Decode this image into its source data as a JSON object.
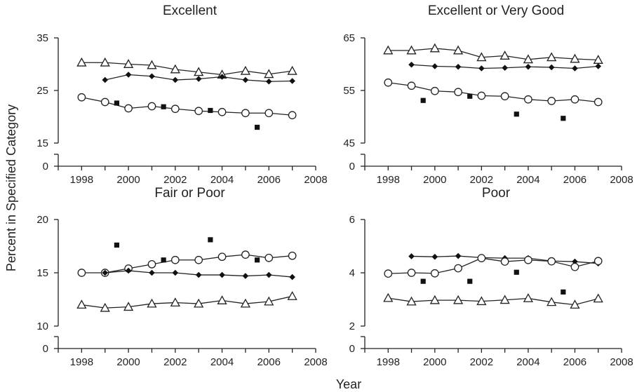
{
  "figure": {
    "ylabel": "Percent in Specified Category",
    "xlabel": "Year"
  },
  "chart_data": [
    {
      "type": "line",
      "title": "Excellent",
      "xlim": [
        1997,
        2008
      ],
      "xticks": [
        1998,
        2000,
        2002,
        2004,
        2006,
        2008
      ],
      "ylim": [
        15,
        35
      ],
      "yticks": [
        15,
        25,
        35
      ],
      "axis_break": true,
      "zero_label": "0",
      "series": [
        {
          "marker": "triangle-open",
          "line": true,
          "x": [
            1998,
            1999,
            2000,
            2001,
            2002,
            2003,
            2004,
            2005,
            2006,
            2007
          ],
          "y": [
            30.3,
            30.3,
            30.0,
            29.8,
            29.0,
            28.5,
            28.0,
            28.7,
            28.1,
            28.7
          ]
        },
        {
          "marker": "diamond-filled",
          "line": true,
          "x": [
            1999,
            2000,
            2001,
            2002,
            2003,
            2004,
            2005,
            2006,
            2007
          ],
          "y": [
            27.0,
            28.0,
            27.7,
            27.0,
            27.2,
            27.6,
            27.0,
            26.7,
            26.8
          ]
        },
        {
          "marker": "circle-open",
          "line": true,
          "x": [
            1998,
            1999,
            2000,
            2001,
            2002,
            2003,
            2004,
            2005,
            2006,
            2007
          ],
          "y": [
            23.7,
            22.8,
            21.6,
            22.0,
            21.5,
            21.1,
            20.9,
            20.7,
            20.7,
            20.3
          ]
        },
        {
          "marker": "square-filled",
          "line": false,
          "x": [
            1999.5,
            2001.5,
            2003.5,
            2005.5
          ],
          "y": [
            22.6,
            21.9,
            21.2,
            18.0
          ]
        }
      ]
    },
    {
      "type": "line",
      "title": "Excellent or Very Good",
      "xlim": [
        1997,
        2008
      ],
      "xticks": [
        1998,
        2000,
        2002,
        2004,
        2006,
        2008
      ],
      "ylim": [
        45,
        65
      ],
      "yticks": [
        45,
        55,
        65
      ],
      "axis_break": true,
      "zero_label": "0",
      "series": [
        {
          "marker": "triangle-open",
          "line": true,
          "x": [
            1998,
            1999,
            2000,
            2001,
            2002,
            2003,
            2004,
            2005,
            2006,
            2007
          ],
          "y": [
            62.6,
            62.6,
            63.0,
            62.6,
            61.3,
            61.6,
            60.9,
            61.3,
            61.0,
            60.8
          ]
        },
        {
          "marker": "diamond-filled",
          "line": true,
          "x": [
            1999,
            2000,
            2001,
            2002,
            2003,
            2004,
            2005,
            2006,
            2007
          ],
          "y": [
            59.9,
            59.6,
            59.5,
            59.2,
            59.3,
            59.5,
            59.4,
            59.2,
            59.6
          ]
        },
        {
          "marker": "circle-open",
          "line": true,
          "x": [
            1998,
            1999,
            2000,
            2001,
            2002,
            2003,
            2004,
            2005,
            2006,
            2007
          ],
          "y": [
            56.5,
            55.9,
            54.9,
            54.7,
            54.0,
            53.9,
            53.3,
            53.0,
            53.3,
            52.8
          ]
        },
        {
          "marker": "square-filled",
          "line": false,
          "x": [
            1999.5,
            2001.5,
            2003.5,
            2005.5
          ],
          "y": [
            53.1,
            53.9,
            50.5,
            49.7
          ]
        }
      ]
    },
    {
      "type": "line",
      "title": "Fair or Poor",
      "xlim": [
        1997,
        2008
      ],
      "xticks": [
        1998,
        2000,
        2002,
        2004,
        2006,
        2008
      ],
      "ylim": [
        10,
        20
      ],
      "yticks": [
        10,
        15,
        20
      ],
      "axis_break": true,
      "zero_label": "0",
      "series": [
        {
          "marker": "circle-open",
          "line": true,
          "x": [
            1998,
            1999,
            2000,
            2001,
            2002,
            2003,
            2004,
            2005,
            2006,
            2007
          ],
          "y": [
            15.0,
            15.0,
            15.4,
            15.8,
            16.2,
            16.2,
            16.5,
            16.7,
            16.4,
            16.6
          ]
        },
        {
          "marker": "diamond-filled",
          "line": true,
          "x": [
            1999,
            2000,
            2001,
            2002,
            2003,
            2004,
            2005,
            2006,
            2007
          ],
          "y": [
            15.0,
            15.2,
            15.0,
            15.0,
            14.8,
            14.8,
            14.7,
            14.8,
            14.6
          ]
        },
        {
          "marker": "triangle-open",
          "line": true,
          "x": [
            1998,
            1999,
            2000,
            2001,
            2002,
            2003,
            2004,
            2005,
            2006,
            2007
          ],
          "y": [
            12.0,
            11.7,
            11.8,
            12.1,
            12.2,
            12.1,
            12.4,
            12.1,
            12.3,
            12.8
          ]
        },
        {
          "marker": "square-filled",
          "line": false,
          "x": [
            1999.5,
            2001.5,
            2003.5,
            2005.5
          ],
          "y": [
            17.6,
            16.2,
            18.1,
            16.2
          ]
        }
      ]
    },
    {
      "type": "line",
      "title": "Poor",
      "xlim": [
        1997,
        2008
      ],
      "xticks": [
        1998,
        2000,
        2002,
        2004,
        2006,
        2008
      ],
      "ylim": [
        2,
        6
      ],
      "yticks": [
        2,
        4,
        6
      ],
      "axis_break": true,
      "zero_label": "0",
      "series": [
        {
          "marker": "diamond-filled",
          "line": true,
          "x": [
            1999,
            2000,
            2001,
            2002,
            2003,
            2004,
            2005,
            2006,
            2007
          ],
          "y": [
            4.62,
            4.6,
            4.63,
            4.57,
            4.55,
            4.55,
            4.44,
            4.42,
            4.35
          ]
        },
        {
          "marker": "circle-open",
          "line": true,
          "x": [
            1998,
            1999,
            2000,
            2001,
            2002,
            2003,
            2004,
            2005,
            2006,
            2007
          ],
          "y": [
            3.97,
            4.0,
            3.98,
            4.17,
            4.55,
            4.42,
            4.48,
            4.43,
            4.22,
            4.44
          ]
        },
        {
          "marker": "triangle-open",
          "line": true,
          "x": [
            1998,
            1999,
            2000,
            2001,
            2002,
            2003,
            2004,
            2005,
            2006,
            2007
          ],
          "y": [
            3.05,
            2.92,
            2.97,
            2.97,
            2.93,
            2.98,
            3.04,
            2.9,
            2.8,
            3.03
          ]
        },
        {
          "marker": "square-filled",
          "line": false,
          "x": [
            1999.5,
            2001.5,
            2003.5,
            2005.5
          ],
          "y": [
            3.68,
            3.68,
            4.02,
            3.28
          ]
        }
      ]
    }
  ]
}
